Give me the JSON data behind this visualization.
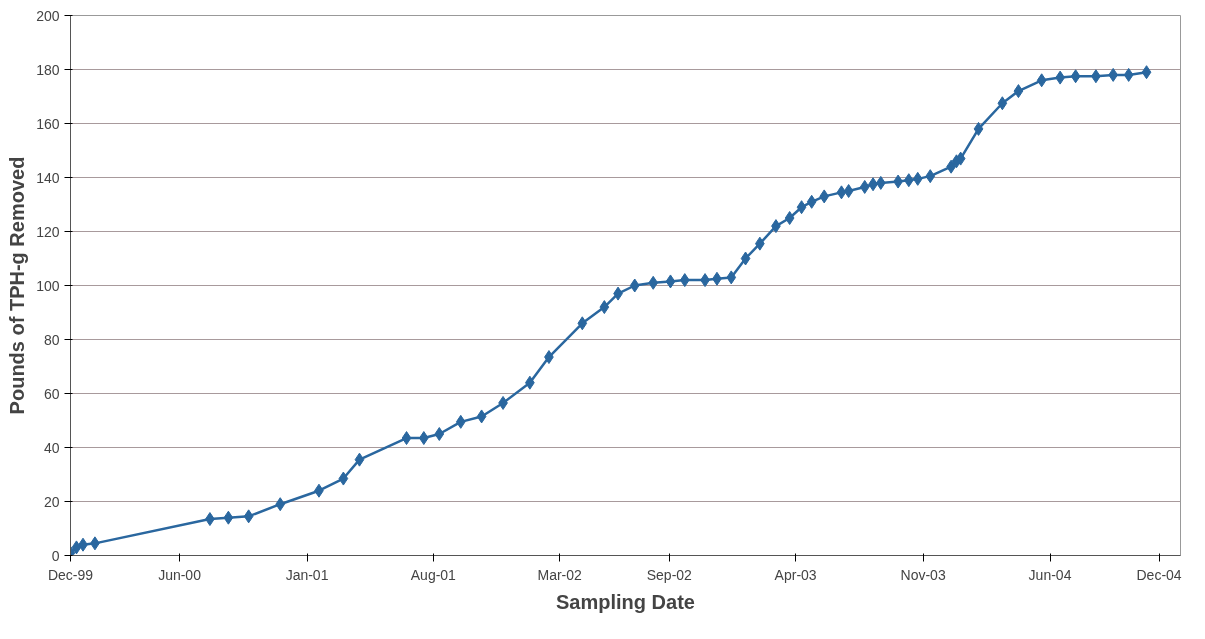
{
  "chart_data": {
    "type": "line",
    "xlabel": "Sampling Date",
    "ylabel": "Pounds of TPH-g Removed",
    "x": [
      "1999-12-01",
      "1999-12-11",
      "1999-12-22",
      "2000-01-11",
      "2000-07-22",
      "2000-08-22",
      "2000-09-25",
      "2000-11-17",
      "2001-01-21",
      "2001-03-03",
      "2001-03-30",
      "2001-06-17",
      "2001-07-16",
      "2001-08-11",
      "2001-09-16",
      "2001-10-21",
      "2001-11-26",
      "2002-01-10",
      "2002-02-11",
      "2002-04-08",
      "2002-05-15",
      "2002-06-07",
      "2002-07-05",
      "2002-08-05",
      "2002-09-03",
      "2002-09-27",
      "2002-10-31",
      "2002-11-20",
      "2002-12-14",
      "2003-01-07",
      "2003-01-31",
      "2003-02-27",
      "2003-03-22",
      "2003-04-11",
      "2003-04-28",
      "2003-05-19",
      "2003-06-17",
      "2003-06-29",
      "2003-07-26",
      "2003-08-09",
      "2003-08-22",
      "2003-09-20",
      "2003-10-08",
      "2003-10-23",
      "2003-11-13",
      "2003-12-18",
      "2003-12-27",
      "2004-01-03",
      "2004-02-02",
      "2004-03-13",
      "2004-04-09",
      "2004-05-18",
      "2004-06-18",
      "2004-07-14",
      "2004-08-17",
      "2004-09-15",
      "2004-10-11",
      "2004-11-10"
    ],
    "series": [
      {
        "color": "#2a679f",
        "values": [
          1,
          3,
          4,
          4.5,
          13.5,
          14,
          14.5,
          19,
          24,
          28.5,
          35.5,
          43.5,
          43.5,
          45,
          49.5,
          51.5,
          56.5,
          64,
          73.5,
          86,
          92,
          97,
          100,
          101,
          101.5,
          102,
          102,
          102.5,
          103,
          110,
          115.5,
          122,
          125,
          129,
          131,
          133,
          134.5,
          135,
          136.5,
          137.5,
          138,
          138.5,
          139,
          139.5,
          140.5,
          144,
          146,
          147,
          158,
          167.5,
          172,
          176,
          177,
          177.5,
          177.5,
          178,
          178,
          179
        ]
      }
    ],
    "xlim": [
      "1999-12-01",
      "2005-01-06"
    ],
    "xticks": [
      {
        "value": "1999-12-01",
        "label": "Dec-99"
      },
      {
        "value": "2000-06-01",
        "label": "Jun-00"
      },
      {
        "value": "2001-01-01",
        "label": "Jan-01"
      },
      {
        "value": "2001-08-01",
        "label": "Aug-01"
      },
      {
        "value": "2002-03-01",
        "label": "Mar-02"
      },
      {
        "value": "2002-09-01",
        "label": "Sep-02"
      },
      {
        "value": "2003-04-01",
        "label": "Apr-03"
      },
      {
        "value": "2003-11-01",
        "label": "Nov-03"
      },
      {
        "value": "2004-06-01",
        "label": "Jun-04"
      },
      {
        "value": "2004-12-01",
        "label": "Dec-04"
      }
    ],
    "ylim": [
      0,
      200
    ],
    "yticks": [
      0,
      20,
      40,
      60,
      80,
      100,
      120,
      140,
      160,
      180,
      200
    ],
    "grid": "y",
    "marker": "diamond",
    "line_style": "solid"
  }
}
